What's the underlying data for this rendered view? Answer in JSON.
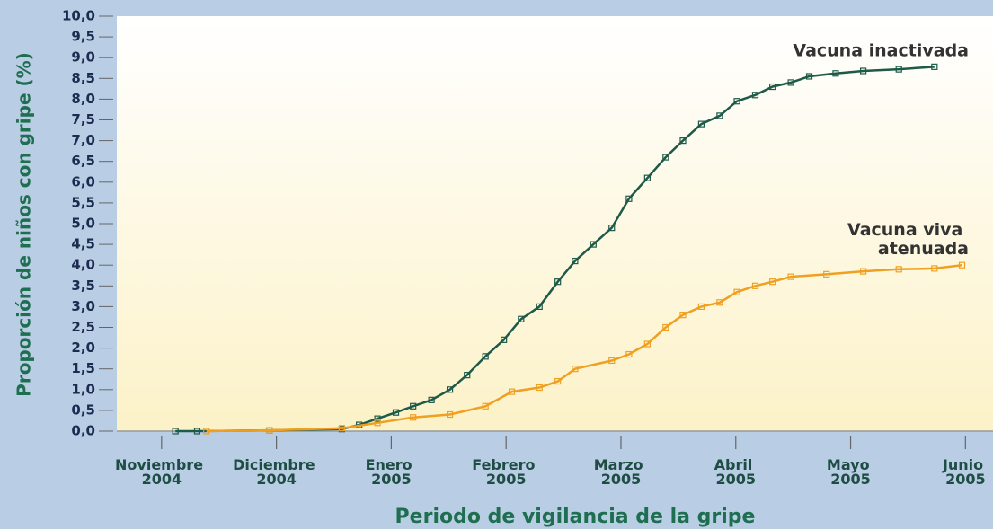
{
  "chart_data": {
    "type": "line",
    "xlabel": "Periodo de vigilancia de la gripe",
    "ylabel": "Proporción de niños con gripe (%)",
    "xlim": [
      -0.39,
      7.24
    ],
    "ylim": [
      0,
      10
    ],
    "xticks": [
      {
        "value": 0,
        "label": "Noviembre 2004"
      },
      {
        "value": 1,
        "label": "Diciembre 2004"
      },
      {
        "value": 2,
        "label": "Enero 2005"
      },
      {
        "value": 3,
        "label": "Febrero 2005"
      },
      {
        "value": 4,
        "label": "Marzo 2005"
      },
      {
        "value": 5,
        "label": "Abril 2005"
      },
      {
        "value": 6,
        "label": "Mayo 2005"
      },
      {
        "value": 7,
        "label": "Junio 2005"
      }
    ],
    "yticks": [
      {
        "value": 0,
        "label": "0,0"
      },
      {
        "value": 0.5,
        "label": "0,5"
      },
      {
        "value": 1,
        "label": "1,0"
      },
      {
        "value": 1.5,
        "label": "1,5"
      },
      {
        "value": 2,
        "label": "2,0"
      },
      {
        "value": 2.5,
        "label": "2,5"
      },
      {
        "value": 3,
        "label": "3,0"
      },
      {
        "value": 3.5,
        "label": "3,5"
      },
      {
        "value": 4,
        "label": "4,0"
      },
      {
        "value": 4.5,
        "label": "4,5"
      },
      {
        "value": 5,
        "label": "5,0"
      },
      {
        "value": 5.5,
        "label": "5,5"
      },
      {
        "value": 6,
        "label": "6,0"
      },
      {
        "value": 6.5,
        "label": "6,5"
      },
      {
        "value": 7,
        "label": "7,0"
      },
      {
        "value": 7.5,
        "label": "7,5"
      },
      {
        "value": 8,
        "label": "8,0"
      },
      {
        "value": 8.5,
        "label": "8,5"
      },
      {
        "value": 9,
        "label": "9,0"
      },
      {
        "value": 9.5,
        "label": "9,5"
      },
      {
        "value": 10,
        "label": "10,0"
      }
    ],
    "series": [
      {
        "name": "Vacuna inactivada",
        "color": "#1d5a48",
        "x": [
          0.12,
          0.31,
          0.94,
          1.57,
          1.72,
          1.88,
          2.04,
          2.19,
          2.35,
          2.51,
          2.66,
          2.82,
          2.98,
          3.13,
          3.29,
          3.45,
          3.6,
          3.76,
          3.92,
          4.07,
          4.23,
          4.39,
          4.54,
          4.7,
          4.86,
          5.01,
          5.17,
          5.32,
          5.48,
          5.64,
          5.87,
          6.11,
          6.42,
          6.73
        ],
        "values": [
          0,
          0,
          0.02,
          0.05,
          0.15,
          0.3,
          0.45,
          0.6,
          0.75,
          1.0,
          1.35,
          1.8,
          2.2,
          2.7,
          3.0,
          3.6,
          4.1,
          4.5,
          4.9,
          5.6,
          6.1,
          6.6,
          7.0,
          7.4,
          7.6,
          7.95,
          8.1,
          8.3,
          8.4,
          8.55,
          8.62,
          8.68,
          8.72,
          8.78
        ]
      },
      {
        "name": "Vacuna viva atenuada",
        "color": "#f0a020",
        "x": [
          0.39,
          0.94,
          1.57,
          1.88,
          2.19,
          2.51,
          2.82,
          3.05,
          3.29,
          3.45,
          3.6,
          3.92,
          4.07,
          4.23,
          4.39,
          4.54,
          4.7,
          4.86,
          5.01,
          5.17,
          5.32,
          5.48,
          5.79,
          6.11,
          6.42,
          6.73,
          6.97
        ],
        "values": [
          0,
          0.02,
          0.07,
          0.2,
          0.33,
          0.4,
          0.6,
          0.95,
          1.05,
          1.2,
          1.5,
          1.7,
          1.85,
          2.1,
          2.5,
          2.8,
          3.0,
          3.1,
          3.35,
          3.5,
          3.6,
          3.72,
          3.78,
          3.85,
          3.9,
          3.92,
          4.0
        ]
      }
    ]
  }
}
